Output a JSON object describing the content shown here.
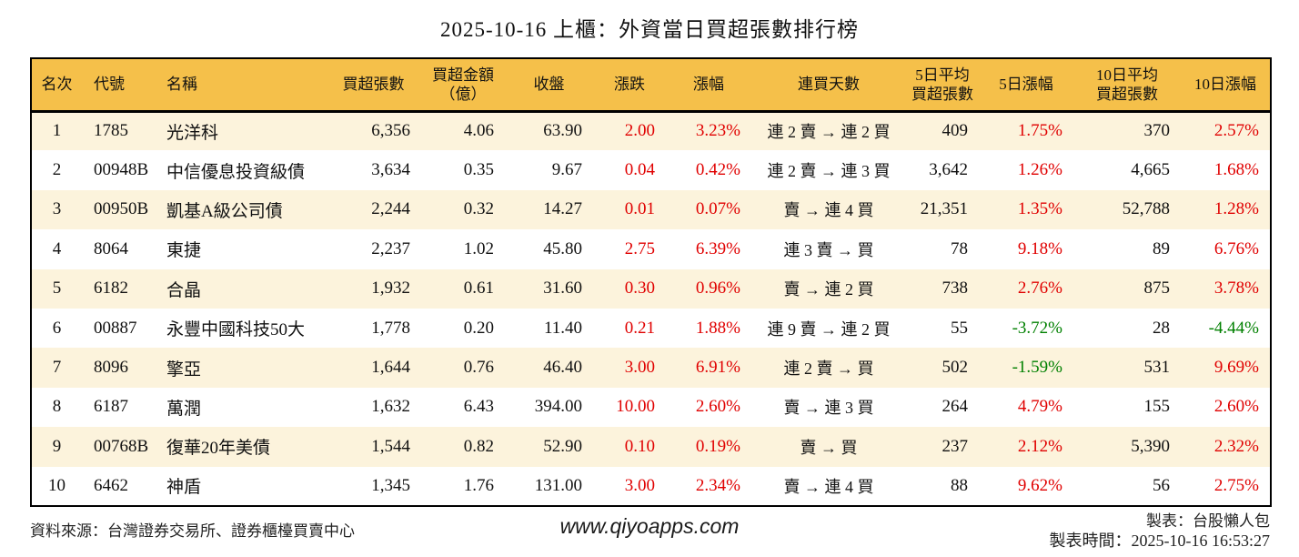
{
  "page": {
    "title": "2025-10-16 上櫃：外資當日買超張數排行榜"
  },
  "colors": {
    "header_bg": "#f5c04a",
    "row_alt_bg": "#fcf3dc",
    "up_red": "#e00000",
    "down_green": "#008000",
    "border": "#000000"
  },
  "footer": {
    "source": "資料來源：台灣證券交易所、證券櫃檯買賣中心",
    "watermark": "www.qiyoapps.com",
    "author": "製表：台股懶人包",
    "generated_at": "製表時間：2025-10-16 16:53:27"
  },
  "chart_data": {
    "type": "table",
    "title": "2025-10-16 上櫃：外資當日買超張數排行榜",
    "columns": [
      {
        "key": "rank",
        "lines": [
          "名次"
        ]
      },
      {
        "key": "code",
        "lines": [
          "代號"
        ]
      },
      {
        "key": "name",
        "lines": [
          "名稱"
        ]
      },
      {
        "key": "net_buy",
        "lines": [
          "買超張數"
        ]
      },
      {
        "key": "amount",
        "lines": [
          "買超金額",
          "（億）"
        ]
      },
      {
        "key": "close",
        "lines": [
          "收盤"
        ]
      },
      {
        "key": "change",
        "lines": [
          "漲跌"
        ]
      },
      {
        "key": "change_pct",
        "lines": [
          "漲幅"
        ]
      },
      {
        "key": "streak",
        "lines": [
          "連買天數"
        ]
      },
      {
        "key": "avg5",
        "lines": [
          "5日平均",
          "買超張數"
        ]
      },
      {
        "key": "pct5",
        "lines": [
          "5日漲幅"
        ]
      },
      {
        "key": "avg10",
        "lines": [
          "10日平均",
          "買超張數"
        ]
      },
      {
        "key": "pct10",
        "lines": [
          "10日漲幅"
        ]
      }
    ],
    "rows": [
      {
        "rank": "1",
        "code": "1785",
        "name": "光洋科",
        "net_buy": "6,356",
        "amount": "4.06",
        "close": "63.90",
        "change": "2.00",
        "change_pct": "3.23%",
        "streak": "連 2 賣 → 連 2 買",
        "avg5": "409",
        "pct5": "1.75%",
        "avg10": "370",
        "pct10": "2.57%"
      },
      {
        "rank": "2",
        "code": "00948B",
        "name": "中信優息投資級債",
        "net_buy": "3,634",
        "amount": "0.35",
        "close": "9.67",
        "change": "0.04",
        "change_pct": "0.42%",
        "streak": "連 2 賣 → 連 3 買",
        "avg5": "3,642",
        "pct5": "1.26%",
        "avg10": "4,665",
        "pct10": "1.68%"
      },
      {
        "rank": "3",
        "code": "00950B",
        "name": "凱基A級公司債",
        "net_buy": "2,244",
        "amount": "0.32",
        "close": "14.27",
        "change": "0.01",
        "change_pct": "0.07%",
        "streak": "賣 → 連 4 買",
        "avg5": "21,351",
        "pct5": "1.35%",
        "avg10": "52,788",
        "pct10": "1.28%"
      },
      {
        "rank": "4",
        "code": "8064",
        "name": "東捷",
        "net_buy": "2,237",
        "amount": "1.02",
        "close": "45.80",
        "change": "2.75",
        "change_pct": "6.39%",
        "streak": "連 3 賣 → 買",
        "avg5": "78",
        "pct5": "9.18%",
        "avg10": "89",
        "pct10": "6.76%"
      },
      {
        "rank": "5",
        "code": "6182",
        "name": "合晶",
        "net_buy": "1,932",
        "amount": "0.61",
        "close": "31.60",
        "change": "0.30",
        "change_pct": "0.96%",
        "streak": "賣 → 連 2 買",
        "avg5": "738",
        "pct5": "2.76%",
        "avg10": "875",
        "pct10": "3.78%"
      },
      {
        "rank": "6",
        "code": "00887",
        "name": "永豐中國科技50大",
        "net_buy": "1,778",
        "amount": "0.20",
        "close": "11.40",
        "change": "0.21",
        "change_pct": "1.88%",
        "streak": "連 9 賣 → 連 2 買",
        "avg5": "55",
        "pct5": "-3.72%",
        "avg10": "28",
        "pct10": "-4.44%"
      },
      {
        "rank": "7",
        "code": "8096",
        "name": "擎亞",
        "net_buy": "1,644",
        "amount": "0.76",
        "close": "46.40",
        "change": "3.00",
        "change_pct": "6.91%",
        "streak": "連 2 賣 → 買",
        "avg5": "502",
        "pct5": "-1.59%",
        "avg10": "531",
        "pct10": "9.69%"
      },
      {
        "rank": "8",
        "code": "6187",
        "name": "萬潤",
        "net_buy": "1,632",
        "amount": "6.43",
        "close": "394.00",
        "change": "10.00",
        "change_pct": "2.60%",
        "streak": "賣 → 連 3 買",
        "avg5": "264",
        "pct5": "4.79%",
        "avg10": "155",
        "pct10": "2.60%"
      },
      {
        "rank": "9",
        "code": "00768B",
        "name": "復華20年美債",
        "net_buy": "1,544",
        "amount": "0.82",
        "close": "52.90",
        "change": "0.10",
        "change_pct": "0.19%",
        "streak": "賣 → 買",
        "avg5": "237",
        "pct5": "2.12%",
        "avg10": "5,390",
        "pct10": "2.32%"
      },
      {
        "rank": "10",
        "code": "6462",
        "name": "神盾",
        "net_buy": "1,345",
        "amount": "1.76",
        "close": "131.00",
        "change": "3.00",
        "change_pct": "2.34%",
        "streak": "賣 → 連 4 買",
        "avg5": "88",
        "pct5": "9.62%",
        "avg10": "56",
        "pct10": "2.75%"
      }
    ]
  }
}
